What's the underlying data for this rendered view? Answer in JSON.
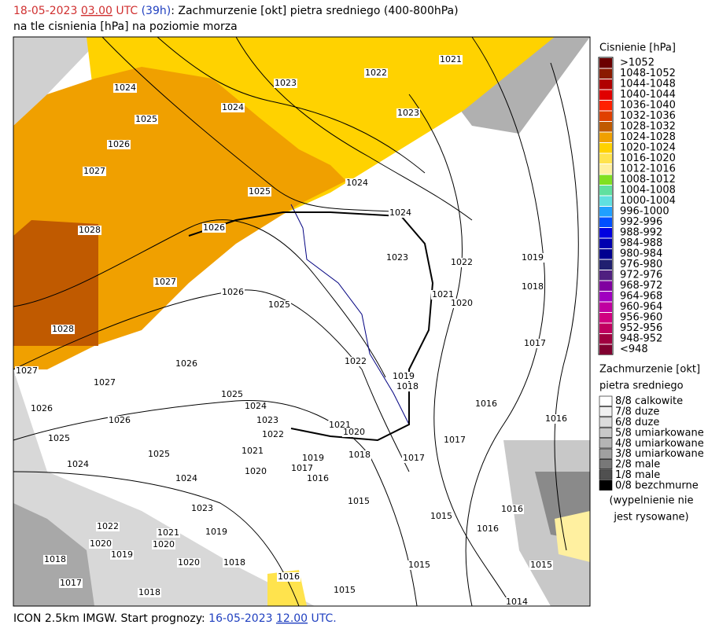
{
  "header": {
    "date": "18-05-2023",
    "time": "03.00",
    "zone": "UTC",
    "lead": "(39h)",
    "description": ": Zachmurzenie [okt] pietra sredniego (400-800hPa)",
    "subtitle": "na tle cisnienia [hPa] na poziomie morza"
  },
  "pressure_legend": {
    "title": "Cisnienie [hPa]",
    "items": [
      {
        "label": ">1052",
        "color": "#6b0000"
      },
      {
        "label": "1048-1052",
        "color": "#8b1a00"
      },
      {
        "label": "1044-1048",
        "color": "#b00000"
      },
      {
        "label": "1040-1044",
        "color": "#e00000"
      },
      {
        "label": "1036-1040",
        "color": "#ff2000"
      },
      {
        "label": "1032-1036",
        "color": "#e04000"
      },
      {
        "label": "1028-1032",
        "color": "#c05a00"
      },
      {
        "label": "1024-1028",
        "color": "#f0a000"
      },
      {
        "label": "1020-1024",
        "color": "#ffd200"
      },
      {
        "label": "1016-1020",
        "color": "#ffe34d"
      },
      {
        "label": "1012-1016",
        "color": "#fff0a0"
      },
      {
        "label": "1008-1012",
        "color": "#80e020"
      },
      {
        "label": "1004-1008",
        "color": "#60e0a0"
      },
      {
        "label": "1000-1004",
        "color": "#60e0e0"
      },
      {
        "label": "996-1000",
        "color": "#20a0ff"
      },
      {
        "label": "992-996",
        "color": "#0050ff"
      },
      {
        "label": "988-992",
        "color": "#0000e0"
      },
      {
        "label": "984-988",
        "color": "#0000b0"
      },
      {
        "label": "980-984",
        "color": "#000090"
      },
      {
        "label": "976-980",
        "color": "#202070"
      },
      {
        "label": "972-976",
        "color": "#502080"
      },
      {
        "label": "968-972",
        "color": "#8000a0"
      },
      {
        "label": "964-968",
        "color": "#a000c0"
      },
      {
        "label": "960-964",
        "color": "#c000a0"
      },
      {
        "label": "956-960",
        "color": "#d00080"
      },
      {
        "label": "952-956",
        "color": "#c00060"
      },
      {
        "label": "948-952",
        "color": "#a00040"
      },
      {
        "label": "<948",
        "color": "#800030"
      }
    ]
  },
  "cloud_legend": {
    "title": [
      "Zachmurzenie [okt]",
      "pietra sredniego"
    ],
    "items": [
      {
        "label": "8/8 calkowite",
        "color": "#ffffff"
      },
      {
        "label": "7/8 duze",
        "color": "#f0f0f0"
      },
      {
        "label": "6/8 duze",
        "color": "#dcdcdc"
      },
      {
        "label": "5/8 umiarkowane",
        "color": "#c8c8c8"
      },
      {
        "label": "4/8 umiarkowane",
        "color": "#b4b4b4"
      },
      {
        "label": "3/8 umiarkowane",
        "color": "#a0a0a0"
      },
      {
        "label": "2/8 male",
        "color": "#787878"
      },
      {
        "label": "1/8 male",
        "color": "#505050"
      },
      {
        "label": "0/8 bezchmurne",
        "color": "#000000"
      }
    ],
    "note": [
      "(wypelnienie nie",
      "jest rysowane)"
    ]
  },
  "isobar_labels": [
    "1021",
    "1022",
    "1023",
    "1024",
    "1024",
    "1023",
    "1025",
    "1026",
    "1027",
    "1025",
    "1024",
    "1024",
    "1026",
    "1028",
    "1023",
    "1022",
    "1019",
    "1027",
    "1026",
    "1025",
    "1021",
    "1020",
    "1018",
    "1028",
    "1017",
    "1026",
    "1022",
    "1027",
    "1019",
    "1018",
    "1027",
    "1025",
    "1024",
    "1016",
    "1016",
    "1026",
    "1026",
    "1023",
    "1022",
    "1021",
    "1020",
    "1017",
    "1025",
    "1021",
    "1025",
    "1019",
    "1018",
    "1017",
    "1024",
    "1017",
    "1020",
    "1016",
    "1024",
    "1015",
    "1023",
    "1016",
    "1015",
    "1016",
    "1021",
    "1019",
    "1022",
    "1020",
    "1020",
    "1019",
    "1018",
    "1020",
    "1018",
    "1015",
    "1015",
    "1016",
    "1017",
    "1018",
    "1015",
    "1014"
  ],
  "footer": {
    "model": "ICON 2.5km IMGW. Start prognozy:",
    "date": "16-05-2023",
    "time": "12.00",
    "zone": "UTC."
  }
}
